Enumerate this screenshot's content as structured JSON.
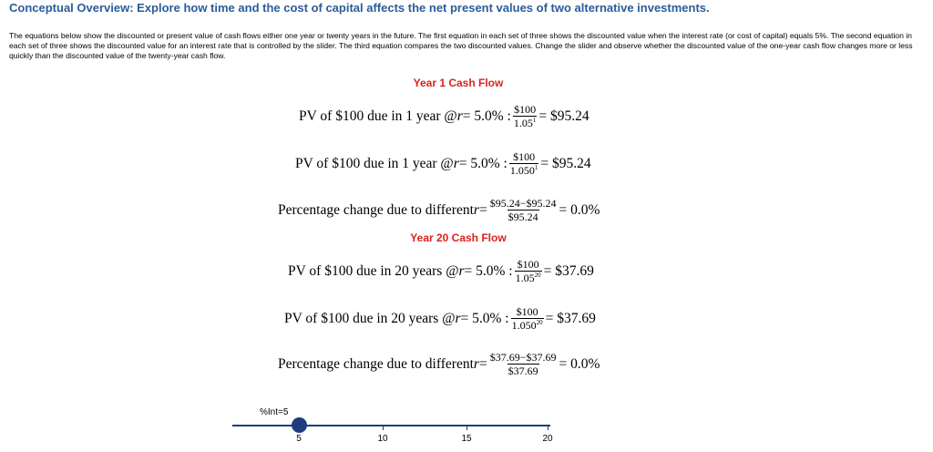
{
  "title": "Conceptual Overview: Explore how time and the cost of capital affects the net present values of two alternative investments.",
  "description": "The equations below show the discounted or present value of cash flows either one year or twenty years in the future. The first equation in each set of three shows the discounted value when the interest rate (or cost of capital) equals 5%. The second equation in each set of three shows the discounted value for an interest rate that is controlled by the slider. The third equation compares the two discounted values. Change the slider and observe whether the discounted value of the one-year cash flow changes more or less quickly than the discounted value of the twenty-year cash flow.",
  "year1": {
    "heading": "Year 1 Cash Flow",
    "eq1": {
      "prefix": "PV of $100 due in 1 year @ ",
      "var": "r",
      "mid": " = 5.0% : ",
      "num": "$100",
      "den_base": "1.05",
      "den_exp": "1",
      "result": "= $95.24"
    },
    "eq2": {
      "prefix": "PV of $100 due in 1 year @ ",
      "var": "r",
      "mid": " = 5.0% : ",
      "num": "$100",
      "den_base": "1.050",
      "den_exp": "1",
      "result": "= $95.24"
    },
    "eq3": {
      "prefix": "Percentage change due to different ",
      "var": "r",
      "mid": " = ",
      "num": "$95.24−$95.24",
      "den": "$95.24",
      "result": "= 0.0%"
    }
  },
  "year20": {
    "heading": "Year 20 Cash Flow",
    "eq1": {
      "prefix": "PV of $100 due in 20 years @ ",
      "var": "r",
      "mid": " = 5.0% : ",
      "num": "$100",
      "den_base": "1.05",
      "den_exp": "20",
      "result": "= $37.69"
    },
    "eq2": {
      "prefix": "PV of $100 due in 20 years @ ",
      "var": "r",
      "mid": " = 5.0% : ",
      "num": "$100",
      "den_base": "1.050",
      "den_exp": "20",
      "result": "= $37.69"
    },
    "eq3": {
      "prefix": "Percentage change due to different ",
      "var": "r",
      "mid": " = ",
      "num": "$37.69−$37.69",
      "den": "$37.69",
      "result": "= 0.0%"
    }
  },
  "slider": {
    "label": "%Int=5",
    "value": 5,
    "ticks": [
      "5",
      "10",
      "15",
      "20"
    ],
    "color": "#1d3d7d"
  },
  "colors": {
    "title": "#2b5c9a",
    "heading": "#d9231b"
  }
}
